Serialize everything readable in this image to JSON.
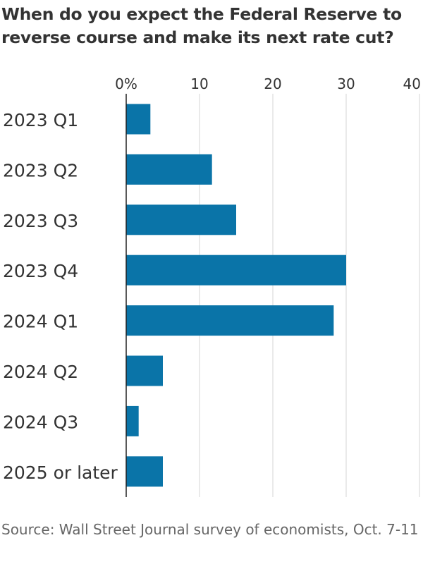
{
  "title": "When do you expect the Federal Reserve to reverse course and make its next rate cut?",
  "source": "Source: Wall Street Journal survey of economists, Oct. 7-11",
  "colors": {
    "bar": "#0a74a8",
    "grid": "#d6d6d6",
    "axis": "#222222",
    "text": "#333333"
  },
  "chart_data": {
    "type": "bar",
    "orientation": "horizontal",
    "categories": [
      "2023 Q1",
      "2023 Q2",
      "2023 Q3",
      "2023 Q4",
      "2024 Q1",
      "2024 Q2",
      "2024 Q3",
      "2025 or later"
    ],
    "values": [
      3.3,
      11.7,
      15.0,
      30.0,
      28.3,
      5.0,
      1.7,
      5.0
    ],
    "x_ticks": [
      0,
      10,
      20,
      30,
      40
    ],
    "x_tick_labels": [
      "0%",
      "10",
      "20",
      "30",
      "40"
    ],
    "xlim": [
      0,
      40
    ],
    "xlabel": "",
    "ylabel": "",
    "grid": true,
    "axis_position": "top"
  }
}
